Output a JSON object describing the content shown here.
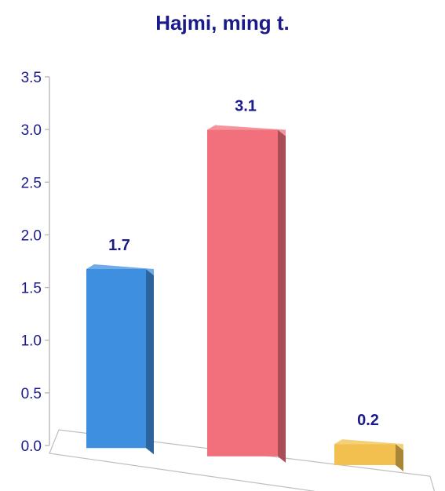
{
  "chart_data": {
    "type": "bar",
    "title": "Hajmi, ming t.",
    "xlabel": "",
    "ylabel": "",
    "categories": [
      "",
      "",
      ""
    ],
    "values": [
      1.7,
      3.1,
      0.2
    ],
    "data_labels": [
      "1.7",
      "3.1",
      "0.2"
    ],
    "ylim": [
      0,
      3.5
    ],
    "yticks": [
      "0.0",
      "0.5",
      "1.0",
      "1.5",
      "2.0",
      "2.5",
      "3.0",
      "3.5"
    ],
    "grid": false,
    "legend": "none",
    "style": "3d-column",
    "colors": [
      "#3f8fe0",
      "#f2707b",
      "#f2c04e"
    ]
  }
}
